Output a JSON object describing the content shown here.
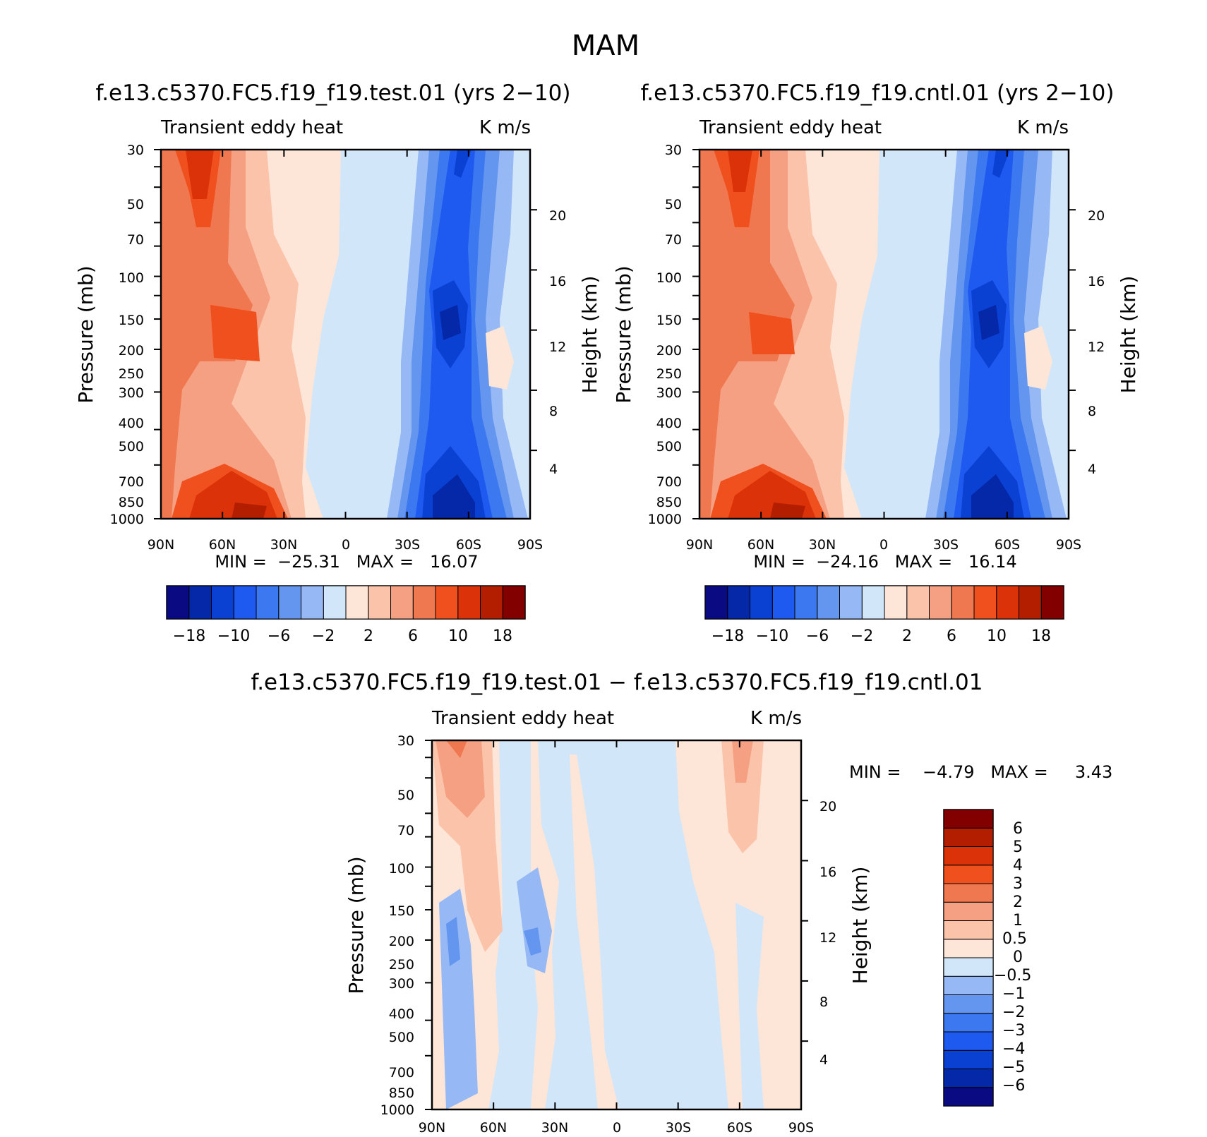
{
  "figure": {
    "title": "MAM"
  },
  "palette": {
    "diverging_16": [
      "#0a0a82",
      "#0528a8",
      "#0a41d2",
      "#1e5af0",
      "#3c78f0",
      "#6496f0",
      "#96b9f5",
      "#d2e6fa",
      "#fde6d7",
      "#fac3aa",
      "#f5a082",
      "#f07850",
      "#f0501e",
      "#dc320a",
      "#b41e00",
      "#820000"
    ]
  },
  "panels": [
    {
      "id": "test",
      "title": "f.e13.c5370.FC5.f19_f19.test.01 (yrs 2−10)",
      "left_label": "Transient eddy heat",
      "right_label": "K m/s",
      "min_max": "MIN =  −25.31   MAX =   16.07",
      "colorbar_labels": [
        "−18",
        "−10",
        "−6",
        "−2",
        "2",
        "6",
        "10",
        "18"
      ]
    },
    {
      "id": "cntl",
      "title": "f.e13.c5370.FC5.f19_f19.cntl.01 (yrs 2−10)",
      "left_label": "Transient eddy heat",
      "right_label": "K m/s",
      "min_max": "MIN =  −24.16   MAX =   16.14",
      "colorbar_labels": [
        "−18",
        "−10",
        "−6",
        "−2",
        "2",
        "6",
        "10",
        "18"
      ]
    },
    {
      "id": "diff",
      "title": "f.e13.c5370.FC5.f19_f19.test.01 − f.e13.c5370.FC5.f19_f19.cntl.01",
      "left_label": "Transient eddy heat",
      "right_label": "K m/s",
      "min_max": "MIN =    −4.79   MAX =     3.43",
      "colorbar_labels": [
        "6",
        "5",
        "4",
        "3",
        "2",
        "1",
        "0.5",
        "0",
        "−0.5",
        "−1",
        "−2",
        "−3",
        "−4",
        "−5",
        "−6"
      ]
    }
  ],
  "axes": {
    "x_ticks": [
      "90N",
      "60N",
      "30N",
      "0",
      "30S",
      "60S",
      "90S"
    ],
    "y_left_label": "Pressure (mb)",
    "y_left_ticks": [
      "30",
      "50",
      "70",
      "100",
      "150",
      "200",
      "250",
      "300",
      "400",
      "500",
      "700",
      "850",
      "1000"
    ],
    "y_right_label": "Height (km)",
    "y_right_ticks": [
      "20",
      "16",
      "12",
      "8",
      "4"
    ]
  },
  "chart_data": [
    {
      "type": "heatmap",
      "title": "f.e13.c5370.FC5.f19_f19.test.01 (yrs 2−10)",
      "subtitle": "Transient eddy heat",
      "units": "K m/s",
      "xlabel": "",
      "ylabel": "Pressure (mb)",
      "y2label": "Height (km)",
      "x_ticks": [
        "90N",
        "60N",
        "30N",
        "0",
        "30S",
        "60S",
        "90S"
      ],
      "x_range": [
        90,
        -90
      ],
      "y_range_mb": [
        1000,
        30
      ],
      "y_scale": "log",
      "levels": [
        -18,
        -14,
        -10,
        -8,
        -6,
        -4,
        -2,
        0,
        2,
        4,
        6,
        8,
        10,
        14,
        18
      ],
      "min": -25.31,
      "max": 16.07,
      "features": [
        {
          "lat": 67,
          "p": 40,
          "value": 12
        },
        {
          "lat": 55,
          "p": 190,
          "value": 8
        },
        {
          "lat": 50,
          "p": 900,
          "value": 13
        },
        {
          "lat": -52,
          "p": 190,
          "value": -16
        },
        {
          "lat": -50,
          "p": 850,
          "value": -20
        },
        {
          "lat": -58,
          "p": 40,
          "value": -12
        },
        {
          "lat": -68,
          "p": 230,
          "value": 1
        },
        {
          "lat": 5,
          "p": 500,
          "value": 1
        }
      ]
    },
    {
      "type": "heatmap",
      "title": "f.e13.c5370.FC5.f19_f19.cntl.01 (yrs 2−10)",
      "subtitle": "Transient eddy heat",
      "units": "K m/s",
      "xlabel": "",
      "ylabel": "Pressure (mb)",
      "y2label": "Height (km)",
      "x_ticks": [
        "90N",
        "60N",
        "30N",
        "0",
        "30S",
        "60S",
        "90S"
      ],
      "x_range": [
        90,
        -90
      ],
      "y_range_mb": [
        1000,
        30
      ],
      "y_scale": "log",
      "levels": [
        -18,
        -14,
        -10,
        -8,
        -6,
        -4,
        -2,
        0,
        2,
        4,
        6,
        8,
        10,
        14,
        18
      ],
      "min": -24.16,
      "max": 16.14,
      "features": [
        {
          "lat": 67,
          "p": 40,
          "value": 11
        },
        {
          "lat": 52,
          "p": 190,
          "value": 8
        },
        {
          "lat": 50,
          "p": 900,
          "value": 13
        },
        {
          "lat": -52,
          "p": 190,
          "value": -16
        },
        {
          "lat": -50,
          "p": 850,
          "value": -19
        },
        {
          "lat": -58,
          "p": 40,
          "value": -12
        },
        {
          "lat": -68,
          "p": 230,
          "value": 1
        },
        {
          "lat": 5,
          "p": 500,
          "value": 1
        }
      ]
    },
    {
      "type": "heatmap",
      "title": "f.e13.c5370.FC5.f19_f19.test.01 − f.e13.c5370.FC5.f19_f19.cntl.01",
      "subtitle": "Transient eddy heat",
      "units": "K m/s",
      "xlabel": "",
      "ylabel": "Pressure (mb)",
      "y2label": "Height (km)",
      "x_ticks": [
        "90N",
        "60N",
        "30N",
        "0",
        "30S",
        "60S",
        "90S"
      ],
      "x_range": [
        90,
        -90
      ],
      "y_range_mb": [
        1000,
        30
      ],
      "y_scale": "log",
      "levels": [
        -6,
        -5,
        -4,
        -3,
        -2,
        -1,
        -0.5,
        0,
        0.5,
        1,
        2,
        3,
        4,
        5,
        6
      ],
      "min": -4.79,
      "max": 3.43,
      "features": [
        {
          "lat": 78,
          "p": 35,
          "value": 3
        },
        {
          "lat": 72,
          "p": 120,
          "value": 1
        },
        {
          "lat": 82,
          "p": 200,
          "value": -1.5
        },
        {
          "lat": 45,
          "p": 200,
          "value": -1.5
        },
        {
          "lat": -60,
          "p": 40,
          "value": 1
        },
        {
          "lat": -58,
          "p": 500,
          "value": 0.3
        },
        {
          "lat": 0,
          "p": 200,
          "value": -0.3
        }
      ]
    }
  ]
}
